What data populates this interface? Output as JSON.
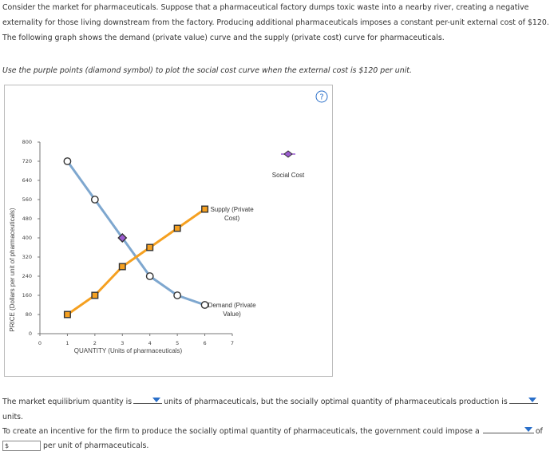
{
  "intro": "Consider the market for pharmaceuticals. Suppose that a pharmaceutical factory dumps toxic waste into a nearby river, creating a negative externality for those living downstream from the factory. Producing additional pharmaceuticals imposes a constant per-unit external cost of $120. The following graph shows the demand (private value) curve and the supply (private cost) curve for pharmaceuticals.",
  "instruction": "Use the purple points (diamond symbol) to plot the social cost curve when the external cost is $120 per unit.",
  "help": "?",
  "chart_data": {
    "type": "line",
    "x_label": "QUANTITY (Units of pharmaceuticals)",
    "y_label": "PRICE (Dollars per unit of pharmaceuticals)",
    "xlim": [
      0,
      7
    ],
    "xticks": [
      0,
      1,
      2,
      3,
      4,
      5,
      6,
      7
    ],
    "ylim": [
      0,
      800
    ],
    "yticks": [
      0,
      80,
      160,
      240,
      320,
      400,
      480,
      560,
      640,
      720,
      800
    ],
    "series": [
      {
        "name": "Demand (Private Value)",
        "color": "#7ea7cf",
        "marker": "circle",
        "line": true,
        "x": [
          1,
          2,
          4,
          5,
          6
        ],
        "values": [
          720,
          560,
          240,
          160,
          120
        ]
      },
      {
        "name": "Supply (Private Cost)",
        "color": "#f5a020",
        "marker": "square",
        "line": true,
        "x": [
          1,
          2,
          3,
          4,
          5,
          6
        ],
        "values": [
          80,
          160,
          280,
          360,
          440,
          520
        ]
      },
      {
        "name": "Social Cost",
        "color": "#9b5bd0",
        "marker": "diamond",
        "line": false,
        "x": [
          3
        ],
        "values": [
          400
        ]
      }
    ]
  },
  "q1": [
    "The market equilibrium quantity is",
    "units of pharmaceuticals, but the socially optimal quantity of pharmaceuticals production is",
    "units."
  ],
  "q2": [
    "To create an incentive for the firm to produce the socially optimal quantity of pharmaceuticals, the government could impose a",
    "of",
    "per unit of pharmaceuticals."
  ],
  "currency": "$"
}
